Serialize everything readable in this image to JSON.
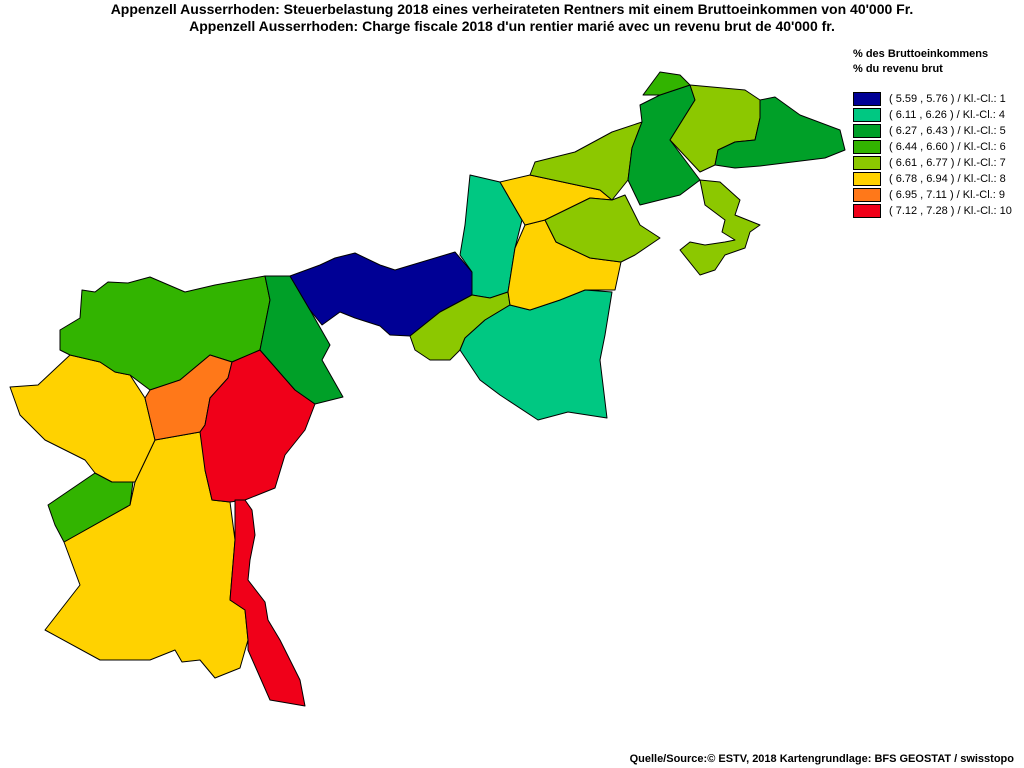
{
  "title": {
    "line1": "Appenzell Ausserrhoden: Steuerbelastung 2018 eines verheirateten Rentners mit einem Bruttoeinkommen von 40'000 Fr.",
    "line2": "Appenzell Ausserrhoden: Charge fiscale 2018 d'un rentier marié avec un revenu brut de 40'000 fr."
  },
  "legend": {
    "title_de": "% des Bruttoeinkommens",
    "title_fr": "% du revenu brut",
    "classes": [
      {
        "label": "( 5.59 , 5.76 ) / Kl.-Cl.: 1",
        "color": "#000095"
      },
      {
        "label": "( 6.11 , 6.26 ) / Kl.-Cl.: 4",
        "color": "#00c882"
      },
      {
        "label": "( 6.27 , 6.43 ) / Kl.-Cl.: 5",
        "color": "#00a028"
      },
      {
        "label": "( 6.44 , 6.60 ) / Kl.-Cl.: 6",
        "color": "#32b400"
      },
      {
        "label": "( 6.61 , 6.77 ) / Kl.-Cl.: 7",
        "color": "#8cc800"
      },
      {
        "label": "( 6.78 , 6.94 ) / Kl.-Cl.: 8",
        "color": "#ffd200"
      },
      {
        "label": "( 6.95 , 7.11 ) / Kl.-Cl.: 9",
        "color": "#ff7819"
      },
      {
        "label": "( 7.12 , 7.28 ) / Kl.-Cl.: 10",
        "color": "#f00019"
      }
    ]
  },
  "source": "Quelle/Source:© ESTV, 2018 Kartengrundlage: BFS GEOSTAT / swisstopo"
}
